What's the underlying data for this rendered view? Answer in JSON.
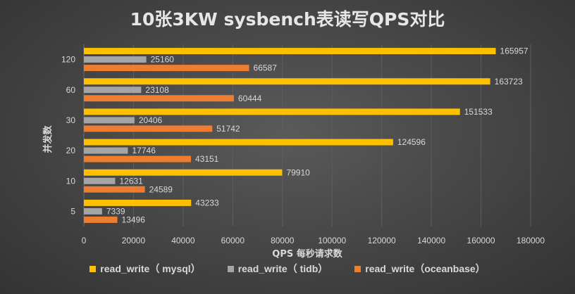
{
  "chart_data": {
    "type": "bar",
    "orientation": "horizontal",
    "title": "10张3KW sysbench表读写QPS对比",
    "xlabel": "QPS 每秒请求数",
    "ylabel": "并发数",
    "categories": [
      "5",
      "10",
      "20",
      "30",
      "60",
      "120"
    ],
    "series": [
      {
        "name": "read_write（ mysql）",
        "color": "#FFC000",
        "values": [
          43233,
          79910,
          124596,
          151533,
          163723,
          165957
        ]
      },
      {
        "name": "read_write（ tidb）",
        "color": "#A5A5A5",
        "values": [
          7339,
          12631,
          17746,
          20406,
          23108,
          25160
        ]
      },
      {
        "name": "read_write（oceanbase）",
        "color": "#ED7D31",
        "values": [
          13496,
          24589,
          43151,
          51742,
          60444,
          66587
        ]
      }
    ],
    "xlim": [
      0,
      180000
    ],
    "xticks": [
      "0",
      "20000",
      "40000",
      "60000",
      "80000",
      "100000",
      "120000",
      "140000",
      "160000",
      "180000"
    ],
    "grid": true,
    "legend_position": "bottom"
  }
}
